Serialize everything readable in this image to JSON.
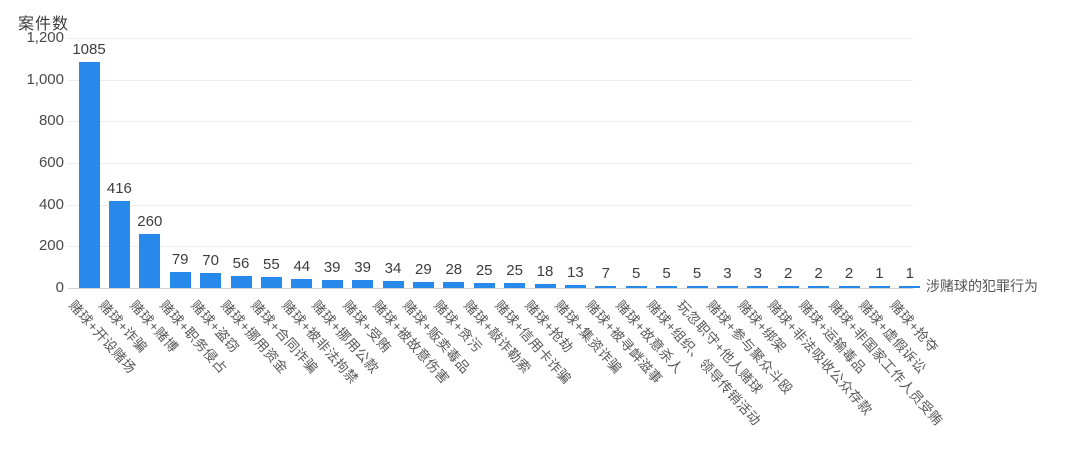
{
  "chart_data": {
    "type": "bar",
    "y_axis_title": "案件数",
    "x_axis_title": "涉赌球的犯罪行为",
    "ylim": [
      0,
      1200
    ],
    "grid": "horizontal",
    "legend_position": "none",
    "bar_color": "#2789e9",
    "y_ticks": [
      {
        "value": 0,
        "label": "0"
      },
      {
        "value": 200,
        "label": "200"
      },
      {
        "value": 400,
        "label": "400"
      },
      {
        "value": 600,
        "label": "600"
      },
      {
        "value": 800,
        "label": "800"
      },
      {
        "value": 1000,
        "label": "1,000"
      },
      {
        "value": 1200,
        "label": "1,200"
      }
    ],
    "categories": [
      "赌球+开设赌场",
      "赌球+诈骗",
      "赌球+赌博",
      "赌球+职务侵占",
      "赌球+盗窃",
      "赌球+挪用资金",
      "赌球+合同诈骗",
      "赌球+被非法拘禁",
      "赌球+挪用公款",
      "赌球+受贿",
      "赌球+被故意伤害",
      "赌球+贩卖毒品",
      "赌球+贪污",
      "赌球+敲诈勒索",
      "赌球+信用卡诈骗",
      "赌球+抢劫",
      "赌球+集资诈骗",
      "赌球+被寻衅滋事",
      "赌球+故意杀人",
      "赌球+组织、领导传销活动",
      "玩忽职守+他人赌球",
      "赌球+参与聚众斗殴",
      "赌球+绑架",
      "赌球+非法吸收公众存款",
      "赌球+运输毒品",
      "赌球+非国家工作人员受贿",
      "赌球+虚假诉讼",
      "赌球+抢夺"
    ],
    "values": [
      1085,
      416,
      260,
      79,
      70,
      56,
      55,
      44,
      39,
      39,
      34,
      29,
      28,
      25,
      25,
      18,
      13,
      7,
      5,
      5,
      5,
      3,
      3,
      2,
      2,
      2,
      1,
      1
    ]
  }
}
